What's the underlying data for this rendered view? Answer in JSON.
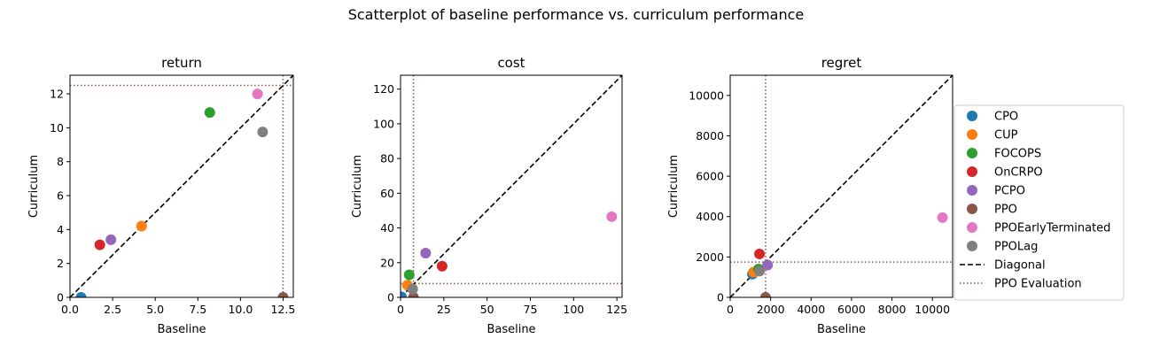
{
  "suptitle": "Scatterplot of baseline performance vs. curriculum performance",
  "chart_data": [
    {
      "type": "scatter",
      "title": "return",
      "xlabel": "Baseline",
      "ylabel": "Curriculum",
      "xlim": [
        0,
        13.1
      ],
      "ylim": [
        0,
        13.1
      ],
      "xticks": [
        "0.0",
        "2.5",
        "5.0",
        "7.5",
        "10.0",
        "12.5"
      ],
      "xtick_values": [
        0,
        2.5,
        5,
        7.5,
        10,
        12.5
      ],
      "yticks": [
        "0",
        "2",
        "4",
        "6",
        "8",
        "10",
        "12"
      ],
      "ytick_values": [
        0,
        2,
        4,
        6,
        8,
        10,
        12
      ],
      "diagonal": true,
      "ppo_evaluation": {
        "x": 12.5,
        "y": 12.5
      },
      "points": [
        {
          "series": "CPO",
          "x": 0.65,
          "y": 0.0
        },
        {
          "series": "CUP",
          "x": 4.2,
          "y": 4.2
        },
        {
          "series": "FOCOPS",
          "x": 8.2,
          "y": 10.9
        },
        {
          "series": "OnCRPO",
          "x": 1.75,
          "y": 3.1
        },
        {
          "series": "PCPO",
          "x": 2.4,
          "y": 3.4
        },
        {
          "series": "PPO",
          "x": 12.5,
          "y": 0.0
        },
        {
          "series": "PPOEarlyTerminated",
          "x": 11.0,
          "y": 12.0
        },
        {
          "series": "PPOLag",
          "x": 11.3,
          "y": 9.75
        }
      ]
    },
    {
      "type": "scatter",
      "title": "cost",
      "xlabel": "Baseline",
      "ylabel": "Curriculum",
      "xlim": [
        0,
        128
      ],
      "ylim": [
        0,
        128
      ],
      "xticks": [
        "0",
        "25",
        "50",
        "75",
        "100",
        "125"
      ],
      "xtick_values": [
        0,
        25,
        50,
        75,
        100,
        125
      ],
      "yticks": [
        "0",
        "20",
        "40",
        "60",
        "80",
        "100",
        "120"
      ],
      "ytick_values": [
        0,
        20,
        40,
        60,
        80,
        100,
        120
      ],
      "diagonal": true,
      "ppo_evaluation": {
        "x": 7.5,
        "y": 8.0
      },
      "points": [
        {
          "series": "CPO",
          "x": 0.5,
          "y": 0.3
        },
        {
          "series": "CUP",
          "x": 4.0,
          "y": 7.0
        },
        {
          "series": "FOCOPS",
          "x": 5.0,
          "y": 13.0
        },
        {
          "series": "OnCRPO",
          "x": 24.0,
          "y": 18.0
        },
        {
          "series": "PCPO",
          "x": 14.5,
          "y": 25.5
        },
        {
          "series": "PPO",
          "x": 7.5,
          "y": 0.0
        },
        {
          "series": "PPOEarlyTerminated",
          "x": 122.0,
          "y": 46.5
        },
        {
          "series": "PPOLag",
          "x": 7.0,
          "y": 4.8
        }
      ]
    },
    {
      "type": "scatter",
      "title": "regret",
      "xlabel": "Baseline",
      "ylabel": "Curriculum",
      "xlim": [
        0,
        11000
      ],
      "ylim": [
        0,
        11000
      ],
      "xticks": [
        "0",
        "2000",
        "4000",
        "6000",
        "8000",
        "10000"
      ],
      "xtick_values": [
        0,
        2000,
        4000,
        6000,
        8000,
        10000
      ],
      "yticks": [
        "0",
        "2000",
        "4000",
        "6000",
        "8000",
        "10000"
      ],
      "ytick_values": [
        0,
        2000,
        4000,
        6000,
        8000,
        10000
      ],
      "diagonal": true,
      "ppo_evaluation": {
        "x": 1750,
        "y": 1750
      },
      "points": [
        {
          "series": "CPO",
          "x": 1100,
          "y": 1150
        },
        {
          "series": "CUP",
          "x": 1150,
          "y": 1250
        },
        {
          "series": "FOCOPS",
          "x": 1400,
          "y": 1400
        },
        {
          "series": "OnCRPO",
          "x": 1450,
          "y": 2150
        },
        {
          "series": "PCPO",
          "x": 1850,
          "y": 1600
        },
        {
          "series": "PPO",
          "x": 1750,
          "y": 0
        },
        {
          "series": "PPOEarlyTerminated",
          "x": 10500,
          "y": 3950
        },
        {
          "series": "PPOLag",
          "x": 1450,
          "y": 1300
        }
      ]
    }
  ],
  "legend": {
    "placement": "right",
    "series": [
      {
        "name": "CPO",
        "color": "#1f77b4"
      },
      {
        "name": "CUP",
        "color": "#ff7f0e"
      },
      {
        "name": "FOCOPS",
        "color": "#2ca02c"
      },
      {
        "name": "OnCRPO",
        "color": "#d62728"
      },
      {
        "name": "PCPO",
        "color": "#9467bd"
      },
      {
        "name": "PPO",
        "color": "#8c564b"
      },
      {
        "name": "PPOEarlyTerminated",
        "color": "#e377c2"
      },
      {
        "name": "PPOLag",
        "color": "#7f7f7f"
      }
    ],
    "lines": [
      {
        "name": "Diagonal",
        "color": "#000000",
        "style": "dashed"
      },
      {
        "name": "PPO Evaluation",
        "color": "#8c564b",
        "style": "dotted"
      }
    ]
  }
}
